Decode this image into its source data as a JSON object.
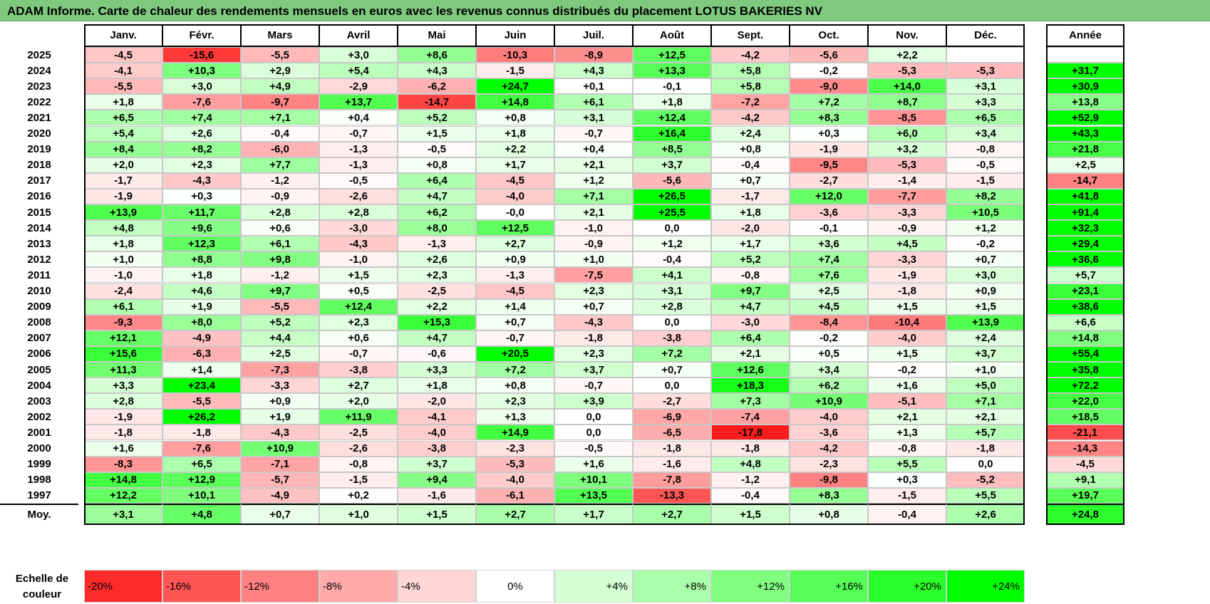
{
  "title": "ADAM Informe. Carte de chaleur des rendements mensuels en euros avec les revenus connus distribués du placement LOTUS BAKERIES NV",
  "colors": {
    "negative_max": "#ff0000",
    "neutral": "#ffffff",
    "positive_max": "#00ff00"
  },
  "chart_data": {
    "type": "heatmap",
    "title": "ADAM Informe. Carte de chaleur des rendements mensuels en euros avec les revenus connus distribués du placement LOTUS BAKERIES NV",
    "x_labels": [
      "Janv.",
      "Févr.",
      "Mars",
      "Avril",
      "Mai",
      "Juin",
      "Juil.",
      "Août",
      "Sept.",
      "Oct.",
      "Nov.",
      "Déc."
    ],
    "year_col_label": "Année",
    "rows": [
      {
        "year": "2025",
        "values": [
          "-4,5",
          "-15,6",
          "-5,5",
          "+3,0",
          "+8,6",
          "-10,3",
          "-8,9",
          "+12,5",
          "-4,2",
          "-5,6",
          "+2,2",
          ""
        ],
        "annual": ""
      },
      {
        "year": "2024",
        "values": [
          "-4,1",
          "+10,3",
          "+2,9",
          "+5,4",
          "+4,3",
          "-1,5",
          "+4,3",
          "+13,3",
          "+5,8",
          "-0,2",
          "-5,3",
          "-5,3"
        ],
        "annual": "+31,7"
      },
      {
        "year": "2023",
        "values": [
          "-5,5",
          "+3,0",
          "+4,9",
          "-2,9",
          "-6,2",
          "+24,7",
          "+0,1",
          "-0,1",
          "+5,8",
          "-9,0",
          "+14,0",
          "+3,1"
        ],
        "annual": "+30,9"
      },
      {
        "year": "2022",
        "values": [
          "+1,8",
          "-7,6",
          "-9,7",
          "+13,7",
          "-14,7",
          "+14,8",
          "+6,1",
          "+1,8",
          "-7,2",
          "+7,2",
          "+8,7",
          "+3,3"
        ],
        "annual": "+13,8"
      },
      {
        "year": "2021",
        "values": [
          "+6,5",
          "+7,4",
          "+7,1",
          "+0,4",
          "+5,2",
          "+0,8",
          "+3,1",
          "+12,4",
          "-4,2",
          "+8,3",
          "-8,5",
          "+6,5"
        ],
        "annual": "+52,9"
      },
      {
        "year": "2020",
        "values": [
          "+5,4",
          "+2,6",
          "-0,4",
          "-0,7",
          "+1,5",
          "+1,8",
          "-0,7",
          "+16,4",
          "+2,4",
          "+0,3",
          "+6,0",
          "+3,4"
        ],
        "annual": "+43,3"
      },
      {
        "year": "2019",
        "values": [
          "+8,4",
          "+8,2",
          "-6,0",
          "-1,3",
          "-0,5",
          "+2,2",
          "+0,4",
          "+8,5",
          "+0,8",
          "-1,9",
          "+3,2",
          "-0,8"
        ],
        "annual": "+21,8"
      },
      {
        "year": "2018",
        "values": [
          "+2,0",
          "+2,3",
          "+7,7",
          "-1,3",
          "+0,8",
          "+1,7",
          "+2,1",
          "+3,7",
          "-0,4",
          "-9,5",
          "-5,3",
          "-0,5"
        ],
        "annual": "+2,5"
      },
      {
        "year": "2017",
        "values": [
          "-1,7",
          "-4,3",
          "-1,2",
          "-0,5",
          "+6,4",
          "-4,5",
          "+1,2",
          "-5,6",
          "+0,7",
          "-2,7",
          "-1,4",
          "-1,5"
        ],
        "annual": "-14,7"
      },
      {
        "year": "2016",
        "values": [
          "-1,9",
          "+0,3",
          "-0,9",
          "-2,6",
          "+4,7",
          "-4,0",
          "+7,1",
          "+26,5",
          "-1,7",
          "+12,0",
          "-7,7",
          "+8,2"
        ],
        "annual": "+41,8"
      },
      {
        "year": "2015",
        "values": [
          "+13,9",
          "+11,7",
          "+2,8",
          "+2,8",
          "+6,2",
          "-0,0",
          "+2,1",
          "+25,5",
          "+1,8",
          "-3,6",
          "-3,3",
          "+10,5"
        ],
        "annual": "+91,4"
      },
      {
        "year": "2014",
        "values": [
          "+4,8",
          "+9,6",
          "+0,6",
          "-3,0",
          "+8,0",
          "+12,5",
          "-1,0",
          "0,0",
          "-2,0",
          "-0,1",
          "-0,9",
          "+1,2"
        ],
        "annual": "+32,3"
      },
      {
        "year": "2013",
        "values": [
          "+1,8",
          "+12,3",
          "+6,1",
          "-4,3",
          "-1,3",
          "+2,7",
          "-0,9",
          "+1,2",
          "+1,7",
          "+3,6",
          "+4,5",
          "-0,2"
        ],
        "annual": "+29,4"
      },
      {
        "year": "2012",
        "values": [
          "+1,0",
          "+8,8",
          "+9,8",
          "-1,0",
          "+2,6",
          "+0,9",
          "+1,0",
          "-0,4",
          "+5,2",
          "+7,4",
          "-3,3",
          "+0,7"
        ],
        "annual": "+36,6"
      },
      {
        "year": "2011",
        "values": [
          "-1,0",
          "+1,8",
          "-1,2",
          "+1,5",
          "+2,3",
          "-1,3",
          "-7,5",
          "+4,1",
          "-0,8",
          "+7,6",
          "-1,9",
          "+3,0"
        ],
        "annual": "+5,7"
      },
      {
        "year": "2010",
        "values": [
          "-2,4",
          "+4,6",
          "+9,7",
          "+0,5",
          "-2,5",
          "-4,5",
          "+2,3",
          "+3,1",
          "+9,7",
          "+2,5",
          "-1,8",
          "+0,9"
        ],
        "annual": "+23,1"
      },
      {
        "year": "2009",
        "values": [
          "+6,1",
          "+1,9",
          "-5,5",
          "+12,4",
          "+2,2",
          "+1,4",
          "+0,7",
          "+2,8",
          "+4,7",
          "+4,5",
          "+1,5",
          "+1,5"
        ],
        "annual": "+38,6"
      },
      {
        "year": "2008",
        "values": [
          "-9,3",
          "+8,0",
          "+5,2",
          "+2,3",
          "+15,3",
          "+0,7",
          "-4,3",
          "0,0",
          "-3,0",
          "-8,4",
          "-10,4",
          "+13,9"
        ],
        "annual": "+6,6"
      },
      {
        "year": "2007",
        "values": [
          "+12,1",
          "-4,9",
          "+4,4",
          "+0,6",
          "+4,7",
          "-0,7",
          "-1,8",
          "-3,8",
          "+6,4",
          "-0,2",
          "-4,0",
          "+2,4"
        ],
        "annual": "+14,8"
      },
      {
        "year": "2006",
        "values": [
          "+15,6",
          "-6,3",
          "+2,5",
          "-0,7",
          "-0,6",
          "+20,5",
          "+2,3",
          "+7,2",
          "+2,1",
          "+0,5",
          "+1,5",
          "+3,7"
        ],
        "annual": "+55,4"
      },
      {
        "year": "2005",
        "values": [
          "+11,3",
          "+1,4",
          "-7,3",
          "-3,8",
          "+3,3",
          "+7,2",
          "+3,7",
          "+0,7",
          "+12,6",
          "+3,4",
          "-0,2",
          "+1,0"
        ],
        "annual": "+35,8"
      },
      {
        "year": "2004",
        "values": [
          "+3,3",
          "+23,4",
          "-3,3",
          "+2,7",
          "+1,8",
          "+0,8",
          "-0,7",
          "0,0",
          "+18,3",
          "+6,2",
          "+1,6",
          "+5,0"
        ],
        "annual": "+72,2"
      },
      {
        "year": "2003",
        "values": [
          "+2,8",
          "-5,5",
          "+0,9",
          "+2,0",
          "-2,0",
          "+2,3",
          "+3,9",
          "-2,7",
          "+7,3",
          "+10,9",
          "-5,1",
          "+7,1"
        ],
        "annual": "+22,0"
      },
      {
        "year": "2002",
        "values": [
          "-1,9",
          "+26,2",
          "+1,9",
          "+11,9",
          "-4,1",
          "+1,3",
          "0,0",
          "-6,9",
          "-7,4",
          "-4,0",
          "+2,1",
          "+2,1"
        ],
        "annual": "+18,5"
      },
      {
        "year": "2001",
        "values": [
          "-1,8",
          "-1,8",
          "-4,3",
          "-2,5",
          "-4,0",
          "+14,9",
          "0,0",
          "-6,5",
          "-17,8",
          "-3,6",
          "+1,3",
          "+5,7"
        ],
        "annual": "-21,1"
      },
      {
        "year": "2000",
        "values": [
          "+1,6",
          "-7,6",
          "+10,9",
          "-2,6",
          "-3,8",
          "-2,3",
          "-0,5",
          "-1,8",
          "-1,8",
          "-4,2",
          "-0,8",
          "-1,8"
        ],
        "annual": "-14,3"
      },
      {
        "year": "1999",
        "values": [
          "-8,3",
          "+6,5",
          "-7,1",
          "-0,8",
          "+3,7",
          "-5,3",
          "+1,6",
          "-1,6",
          "+4,8",
          "-2,3",
          "+5,5",
          "0,0"
        ],
        "annual": "-4,5"
      },
      {
        "year": "1998",
        "values": [
          "+14,8",
          "+12,9",
          "-5,7",
          "-1,5",
          "+9,4",
          "-4,0",
          "+10,1",
          "-7,8",
          "-1,2",
          "-9,8",
          "+0,3",
          "-5,2"
        ],
        "annual": "+9,1"
      },
      {
        "year": "1997",
        "values": [
          "+12,2",
          "+10,1",
          "-4,9",
          "+0,2",
          "-1,6",
          "-6,1",
          "+13,5",
          "-13,3",
          "-0,4",
          "+8,3",
          "-1,5",
          "+5,5"
        ],
        "annual": "+19,7"
      }
    ],
    "average_row": {
      "label": "Moy.",
      "values": [
        "+3,1",
        "+4,8",
        "+0,7",
        "+1,0",
        "+1,5",
        "+2,7",
        "+1,7",
        "+2,7",
        "+1,5",
        "+0,8",
        "-0,4",
        "+2,6"
      ],
      "annual": "+24,8"
    },
    "color_scale": {
      "label_line1": "Echelle de",
      "label_line2": "couleur",
      "steps": [
        "-20%",
        "-16%",
        "-12%",
        "-8%",
        "-4%",
        "0%",
        "+4%",
        "+8%",
        "+12%",
        "+16%",
        "+20%",
        "+24%"
      ]
    }
  }
}
